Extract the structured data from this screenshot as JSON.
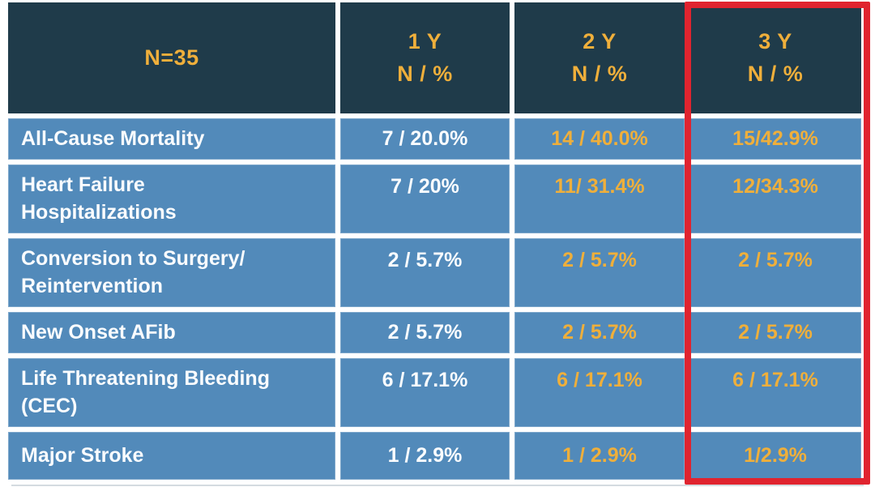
{
  "table": {
    "header": {
      "col0": "N=35",
      "col1": "1 Y\nN / %",
      "col2": "2 Y\nN / %",
      "col3": "3 Y\nN / %"
    },
    "rows": [
      {
        "label": "All-Cause Mortality",
        "y1": "7 / 20.0%",
        "y2": "14 / 40.0%",
        "y3": "15/42.9%"
      },
      {
        "label": "Heart Failure\nHospitalizations",
        "y1": "7 / 20%",
        "y2": "11/ 31.4%",
        "y3": "12/34.3%"
      },
      {
        "label": "Conversion to Surgery/\nReintervention",
        "y1": "2 / 5.7%",
        "y2": "2 / 5.7%",
        "y3": "2 / 5.7%"
      },
      {
        "label": "New Onset AFib",
        "y1": "2 / 5.7%",
        "y2": "2 / 5.7%",
        "y3": "2 / 5.7%"
      },
      {
        "label": "Life Threatening Bleeding\n(CEC)",
        "y1": "6 / 17.1%",
        "y2": "6 / 17.1%",
        "y3": "6 / 17.1%"
      },
      {
        "label": "Major Stroke",
        "y1": "1 / 2.9%",
        "y2": "1 / 2.9%",
        "y3": "1/2.9%"
      }
    ],
    "highlighted_column": "3 Y N / %"
  },
  "colors": {
    "header_bg": "#1F3B4A",
    "row_bg": "#528ABA",
    "accent_gold": "#EFAF3B",
    "text_white": "#FAFCFE",
    "highlight_red": "#E0242F"
  },
  "chart_data": {
    "type": "table",
    "title": "",
    "columns": [
      "N=35",
      "1 Y N / %",
      "2 Y N / %",
      "3 Y N / %"
    ],
    "rows": [
      [
        "All-Cause Mortality",
        "7 / 20.0%",
        "14 / 40.0%",
        "15/42.9%"
      ],
      [
        "Heart Failure Hospitalizations",
        "7 / 20%",
        "11/ 31.4%",
        "12/34.3%"
      ],
      [
        "Conversion to Surgery/ Reintervention",
        "2 / 5.7%",
        "2 / 5.7%",
        "2 / 5.7%"
      ],
      [
        "New Onset AFib",
        "2 / 5.7%",
        "2 / 5.7%",
        "2 / 5.7%"
      ],
      [
        "Life Threatening Bleeding (CEC)",
        "6 / 17.1%",
        "6 / 17.1%",
        "6 / 17.1%"
      ],
      [
        "Major Stroke",
        "1 / 2.9%",
        "1 / 2.9%",
        "1/2.9%"
      ]
    ],
    "highlighted_column": "3 Y N / %",
    "notes": "3Y column outlined with red rectangle; 1Y values white text, 2Y and 3Y values gold text"
  }
}
